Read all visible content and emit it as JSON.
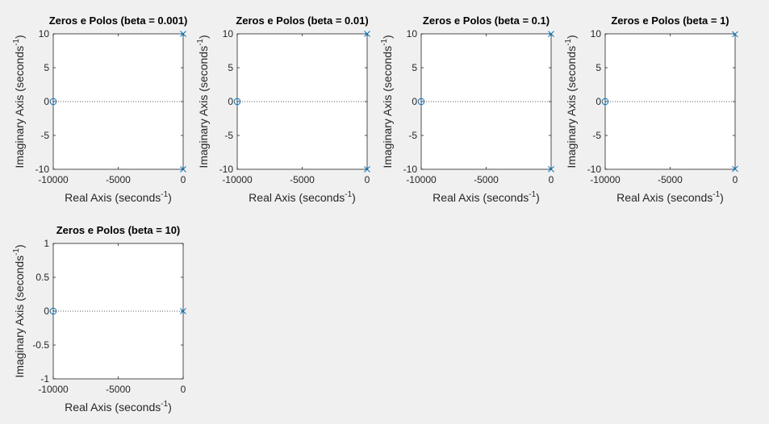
{
  "chart_data": [
    {
      "type": "scatter",
      "title": "Zeros e Polos (beta = 0.001)",
      "xlabel": {
        "main": "Real Axis (seconds",
        "sup": "-1",
        "close": ")"
      },
      "ylabel": {
        "main": "Imaginary Axis (seconds",
        "sup": "-1",
        "close": ")"
      },
      "xlim": [
        -10000,
        0
      ],
      "ylim": [
        -10,
        10
      ],
      "xticks": [
        {
          "v": -10000,
          "label": "-10000"
        },
        {
          "v": -5000,
          "label": "-5000"
        },
        {
          "v": 0,
          "label": "0"
        }
      ],
      "yticks": [
        {
          "v": 10,
          "label": "10"
        },
        {
          "v": 5,
          "label": "5"
        },
        {
          "v": 0,
          "label": "0"
        },
        {
          "v": -5,
          "label": "-5"
        },
        {
          "v": -10,
          "label": "-10"
        }
      ],
      "zeros": [
        {
          "x": -10000,
          "y": 0
        }
      ],
      "poles": [
        {
          "x": 0,
          "y": 10
        },
        {
          "x": 0,
          "y": -10
        }
      ]
    },
    {
      "type": "scatter",
      "title": "Zeros e Polos (beta = 0.01)",
      "xlabel": {
        "main": "Real Axis (seconds",
        "sup": "-1",
        "close": ")"
      },
      "ylabel": {
        "main": "Imaginary Axis (seconds",
        "sup": "-1",
        "close": ")"
      },
      "xlim": [
        -10000,
        0
      ],
      "ylim": [
        -10,
        10
      ],
      "xticks": [
        {
          "v": -10000,
          "label": "-10000"
        },
        {
          "v": -5000,
          "label": "-5000"
        },
        {
          "v": 0,
          "label": "0"
        }
      ],
      "yticks": [
        {
          "v": 10,
          "label": "10"
        },
        {
          "v": 5,
          "label": "5"
        },
        {
          "v": 0,
          "label": "0"
        },
        {
          "v": -5,
          "label": "-5"
        },
        {
          "v": -10,
          "label": "-10"
        }
      ],
      "zeros": [
        {
          "x": -10000,
          "y": 0
        }
      ],
      "poles": [
        {
          "x": 0,
          "y": 10
        },
        {
          "x": 0,
          "y": -10
        }
      ]
    },
    {
      "type": "scatter",
      "title": "Zeros e Polos (beta = 0.1)",
      "xlabel": {
        "main": "Real Axis (seconds",
        "sup": "-1",
        "close": ")"
      },
      "ylabel": {
        "main": "Imaginary Axis (seconds",
        "sup": "-1",
        "close": ")"
      },
      "xlim": [
        -10000,
        0
      ],
      "ylim": [
        -10,
        10
      ],
      "xticks": [
        {
          "v": -10000,
          "label": "-10000"
        },
        {
          "v": -5000,
          "label": "-5000"
        },
        {
          "v": 0,
          "label": "0"
        }
      ],
      "yticks": [
        {
          "v": 10,
          "label": "10"
        },
        {
          "v": 5,
          "label": "5"
        },
        {
          "v": 0,
          "label": "0"
        },
        {
          "v": -5,
          "label": "-5"
        },
        {
          "v": -10,
          "label": "-10"
        }
      ],
      "zeros": [
        {
          "x": -10000,
          "y": 0
        }
      ],
      "poles": [
        {
          "x": 0,
          "y": 9.99
        },
        {
          "x": 0,
          "y": -9.99
        }
      ]
    },
    {
      "type": "scatter",
      "title": "Zeros e Polos (beta = 1)",
      "xlabel": {
        "main": "Real Axis (seconds",
        "sup": "-1",
        "close": ")"
      },
      "ylabel": {
        "main": "Imaginary Axis (seconds",
        "sup": "-1",
        "close": ")"
      },
      "xlim": [
        -10000,
        0
      ],
      "ylim": [
        -10,
        10
      ],
      "xticks": [
        {
          "v": -10000,
          "label": "-10000"
        },
        {
          "v": -5000,
          "label": "-5000"
        },
        {
          "v": 0,
          "label": "0"
        }
      ],
      "yticks": [
        {
          "v": 10,
          "label": "10"
        },
        {
          "v": 5,
          "label": "5"
        },
        {
          "v": 0,
          "label": "0"
        },
        {
          "v": -5,
          "label": "-5"
        },
        {
          "v": -10,
          "label": "-10"
        }
      ],
      "zeros": [
        {
          "x": -10000,
          "y": 0
        }
      ],
      "poles": [
        {
          "x": 0,
          "y": 9.95
        },
        {
          "x": 0,
          "y": -9.95
        }
      ]
    },
    {
      "type": "scatter",
      "title": "Zeros e Polos (beta = 10)",
      "xlabel": {
        "main": "Real Axis (seconds",
        "sup": "-1",
        "close": ")"
      },
      "ylabel": {
        "main": "Imaginary Axis (seconds",
        "sup": "-1",
        "close": ")"
      },
      "xlim": [
        -10000,
        0
      ],
      "ylim": [
        -1,
        1
      ],
      "xticks": [
        {
          "v": -10000,
          "label": "-10000"
        },
        {
          "v": -5000,
          "label": "-5000"
        },
        {
          "v": 0,
          "label": "0"
        }
      ],
      "yticks": [
        {
          "v": 1,
          "label": "1"
        },
        {
          "v": 0.5,
          "label": "0.5"
        },
        {
          "v": 0,
          "label": "0"
        },
        {
          "v": -0.5,
          "label": "-0.5"
        },
        {
          "v": -1,
          "label": "-1"
        }
      ],
      "zeros": [
        {
          "x": -10000,
          "y": 0
        }
      ],
      "poles": [
        {
          "x": 0,
          "y": 0
        }
      ]
    }
  ],
  "colors": {
    "background": "#f0f0f0",
    "axes_background": "#ffffff",
    "axes_border": "#262626",
    "tick_label": "#262626",
    "marker": "#0072bd",
    "zero_line": "#262626"
  }
}
